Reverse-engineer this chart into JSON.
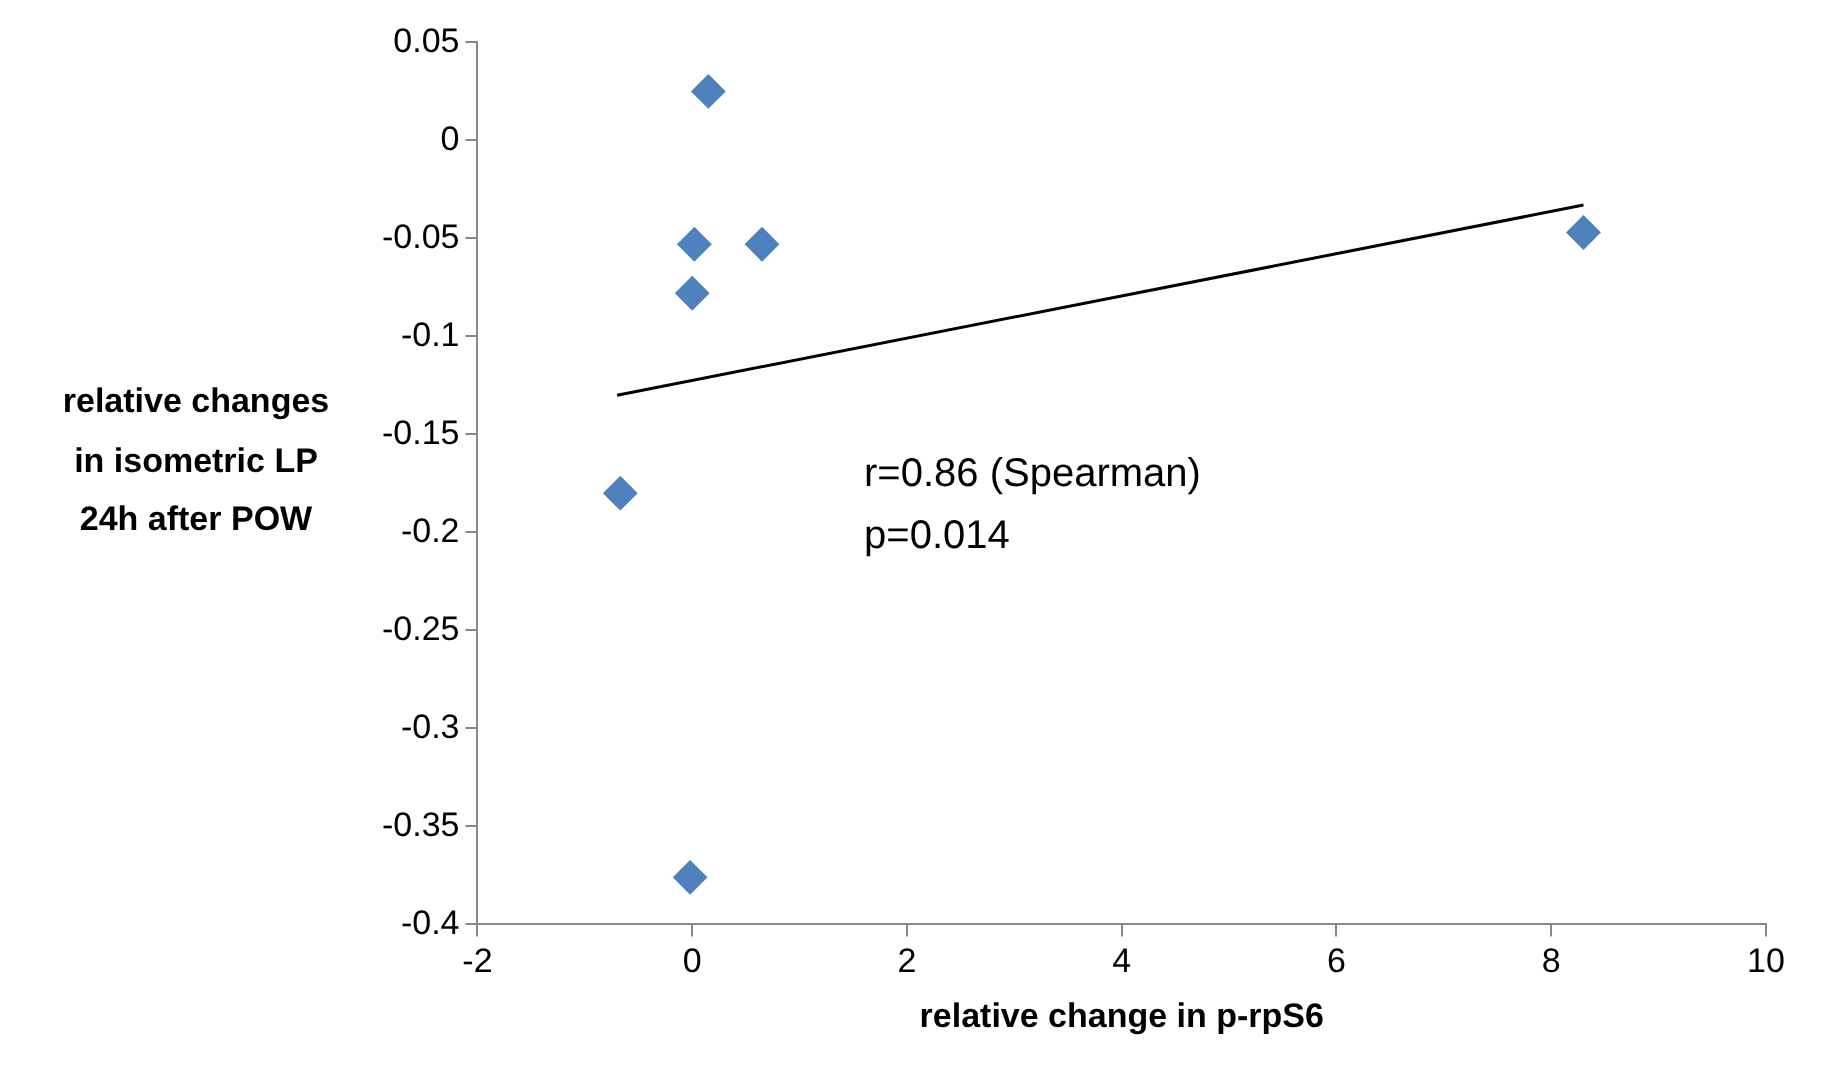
{
  "chart_data": {
    "type": "scatter",
    "xlabel": "relative change in p-rpS6",
    "ylabel": "relative changes in isometric LP 24h after POW",
    "annotations": [
      "r=0.86 (Spearman)",
      "p=0.014"
    ],
    "series": [
      {
        "color": "#4f81bd",
        "marker": "diamond",
        "x": [
          0.15,
          0.02,
          0.65,
          0.0,
          8.3,
          -0.67,
          -0.02
        ],
        "values": [
          0.025,
          -0.053,
          -0.053,
          -0.078,
          -0.047,
          -0.18,
          -0.376
        ]
      },
      {
        "type": "line",
        "color": "#000000",
        "marker": "none",
        "x": [
          -0.7,
          8.3
        ],
        "values": [
          -0.13,
          -0.033
        ]
      }
    ],
    "xlim": [
      -2,
      10
    ],
    "xticks": [
      -2,
      0,
      2,
      4,
      6,
      8,
      10
    ],
    "ylim": [
      -0.4,
      0.05
    ],
    "yticks": [
      -0.4,
      -0.35,
      -0.3,
      -0.25,
      -0.2,
      -0.15,
      -0.1,
      -0.05,
      0,
      0.05
    ],
    "legend": false,
    "grid": false
  }
}
